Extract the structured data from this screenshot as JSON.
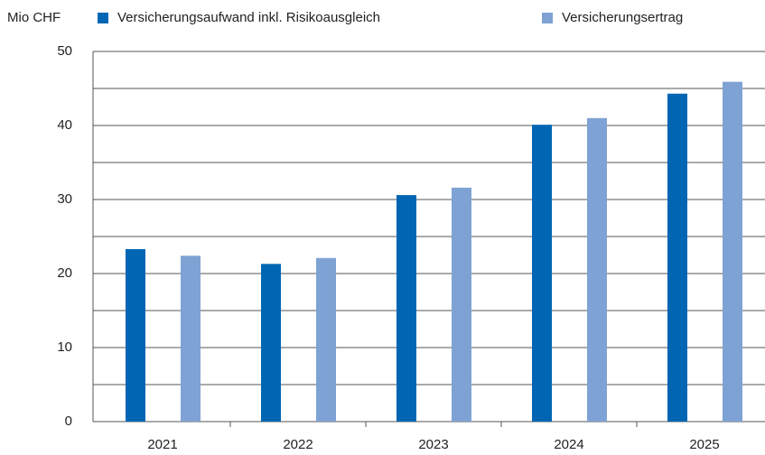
{
  "chart_data": {
    "type": "bar",
    "y_unit": "Mio CHF",
    "categories": [
      "2021",
      "2022",
      "2023",
      "2024",
      "2025"
    ],
    "series": [
      {
        "name": "Versicherungsaufwand inkl. Risikoausgleich",
        "color": "#0066b3",
        "values": [
          23.3,
          21.3,
          30.6,
          40.1,
          44.3
        ]
      },
      {
        "name": "Versicherungsertrag",
        "color": "#7fa2d4",
        "values": [
          22.4,
          22.1,
          31.6,
          41.0,
          45.9
        ]
      }
    ],
    "ylim": [
      0,
      50
    ],
    "yticks": [
      0,
      10,
      20,
      30,
      40,
      50
    ],
    "minor_yticks": [
      5,
      15,
      25,
      35,
      45
    ],
    "grid": true
  }
}
